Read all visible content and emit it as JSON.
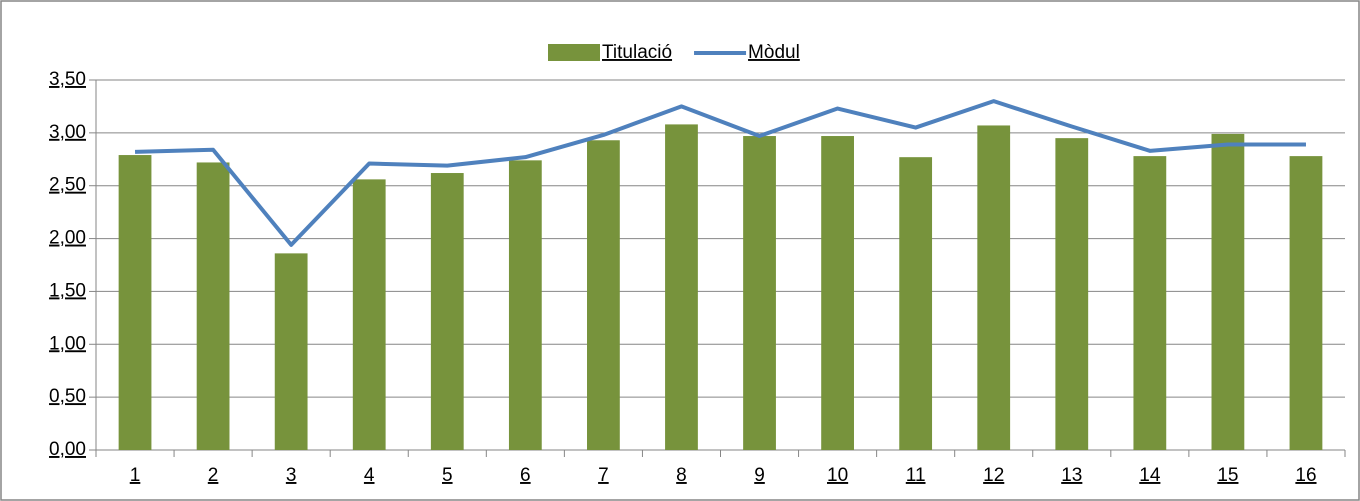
{
  "chart_data": {
    "type": "bar-line",
    "categories": [
      "1",
      "2",
      "3",
      "4",
      "5",
      "6",
      "7",
      "8",
      "9",
      "10",
      "11",
      "12",
      "13",
      "14",
      "15",
      "16"
    ],
    "series": [
      {
        "name": "Titulació",
        "type": "bar",
        "color": "#77933c",
        "values": [
          2.79,
          2.72,
          1.86,
          2.56,
          2.62,
          2.74,
          2.93,
          3.08,
          2.97,
          2.97,
          2.77,
          3.07,
          2.95,
          2.78,
          2.99,
          2.78
        ]
      },
      {
        "name": "Mòdul",
        "type": "line",
        "color": "#4f81bd",
        "values": [
          2.82,
          2.84,
          1.94,
          2.71,
          2.69,
          2.77,
          2.98,
          3.25,
          2.97,
          3.23,
          3.05,
          3.3,
          3.06,
          2.83,
          2.89,
          2.89
        ]
      }
    ],
    "ylim": [
      0,
      3.5
    ],
    "yticks": [
      {
        "value": 0,
        "label": "0,00"
      },
      {
        "value": 0.5,
        "label": "0,50"
      },
      {
        "value": 1,
        "label": "1,00"
      },
      {
        "value": 1.5,
        "label": "1,50"
      },
      {
        "value": 2,
        "label": "2,00"
      },
      {
        "value": 2.5,
        "label": "2,50"
      },
      {
        "value": 3,
        "label": "3,00"
      },
      {
        "value": 3.5,
        "label": "3,50"
      }
    ],
    "grid": true,
    "legend": "top"
  }
}
